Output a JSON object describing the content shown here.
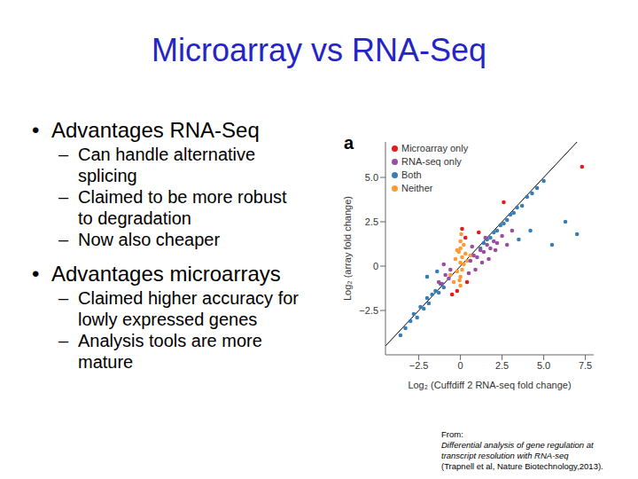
{
  "slide": {
    "title": "Microarray vs RNA-Seq",
    "bullet": "•",
    "sub_bullet": "–",
    "bullets": [
      {
        "text": "Advantages RNA-Seq",
        "items": [
          "Can handle alternative splicing",
          "Claimed to be more robust to degradation",
          "Now also cheaper"
        ]
      },
      {
        "text": "Advantages microarrays",
        "items": [
          "Claimed higher accuracy for lowly expressed genes",
          "Analysis tools are more mature"
        ]
      }
    ],
    "panel_label": "a",
    "source": [
      "From:",
      "Differential analysis of gene regulation at transcript resolution with RNA-seq",
      "(Trapnell et al, Nature Biotechnology,2013)."
    ]
  },
  "chart_data": {
    "type": "scatter",
    "x_label": "Log₂ (Cuffdiff 2 RNA-seq fold change)",
    "y_label": "Log₂ (array fold change)",
    "xlim": [
      -4.5,
      8
    ],
    "ylim": [
      -5,
      7
    ],
    "xticks": [
      {
        "value": -2.5,
        "label": "−2.5"
      },
      0,
      2.5,
      {
        "value": 5,
        "label": "5.0"
      },
      7.5
    ],
    "yticks": [
      {
        "value": -2.5,
        "label": "−2.5"
      },
      0,
      2.5,
      {
        "value": 5,
        "label": "5.0"
      }
    ],
    "grid": false,
    "legend": "upper left",
    "series": [
      {
        "name": "Microarray only",
        "color": "#e41a1c",
        "x": [
          0.3,
          -0.2,
          0.4,
          1.1,
          -0.5,
          2.6,
          7.3,
          0.1
        ],
        "values": [
          1.6,
          -1.4,
          -0.9,
          1.9,
          -1.6,
          3.6,
          5.6,
          2.1
        ]
      },
      {
        "name": "RNA-seq only",
        "color": "#984ea3",
        "x": [
          0.6,
          0.8,
          1.0,
          1.2,
          1.4,
          1.6,
          1.8,
          2.0,
          2.2,
          2.5,
          0.9,
          1.3,
          1.7,
          2.1,
          -0.7,
          -0.9,
          -1.1,
          -1.3,
          -0.6,
          -1.0,
          0.7,
          1.5,
          2.8,
          3.1,
          0.5
        ],
        "values": [
          0.3,
          0.6,
          0.5,
          0.9,
          0.8,
          1.2,
          1.0,
          1.4,
          1.3,
          1.7,
          -0.2,
          0.2,
          0.4,
          0.9,
          -0.7,
          -0.5,
          -1.0,
          -0.9,
          -0.2,
          0.1,
          1.1,
          1.6,
          1.2,
          2.0,
          -0.4
        ]
      },
      {
        "name": "Both",
        "color": "#377eb8",
        "x": [
          -3.6,
          -3.3,
          -3.0,
          -2.8,
          -2.6,
          -2.4,
          -2.2,
          -2.0,
          -1.9,
          -1.7,
          -1.5,
          -1.3,
          -1.2,
          -1.0,
          1.2,
          1.4,
          1.6,
          1.8,
          2.0,
          2.2,
          2.4,
          2.6,
          2.8,
          3.0,
          3.2,
          3.4,
          3.7,
          4.0,
          4.3,
          4.6,
          5.0,
          3.5,
          4.2,
          5.5,
          6.3,
          7.0,
          -2.0,
          -1.4
        ],
        "values": [
          -3.9,
          -3.5,
          -3.1,
          -2.7,
          -2.9,
          -2.3,
          -2.4,
          -1.8,
          -2.1,
          -1.6,
          -1.4,
          -1.5,
          -1.0,
          -1.2,
          1.0,
          1.3,
          1.5,
          1.6,
          1.9,
          2.0,
          2.3,
          2.4,
          2.6,
          2.9,
          3.0,
          3.3,
          3.4,
          3.9,
          4.1,
          4.4,
          4.8,
          1.5,
          2.0,
          1.2,
          2.5,
          1.8,
          -0.6,
          -0.3
        ]
      },
      {
        "name": "Neither",
        "color": "#ff9933",
        "x": [
          -0.4,
          -0.3,
          -0.2,
          -0.1,
          0,
          0,
          0,
          0,
          0.1,
          0.1,
          0.2,
          0.3,
          0.4,
          -0.6,
          0.6,
          0,
          0.05,
          -0.05,
          0.2,
          -0.2
        ],
        "values": [
          -0.9,
          0.4,
          -0.3,
          0.8,
          -0.6,
          0.2,
          1.0,
          1.4,
          -0.2,
          0.5,
          0.1,
          0.7,
          0.3,
          -0.5,
          0.6,
          -1.1,
          1.8,
          -0.8,
          1.2,
          0.9
        ]
      }
    ]
  }
}
